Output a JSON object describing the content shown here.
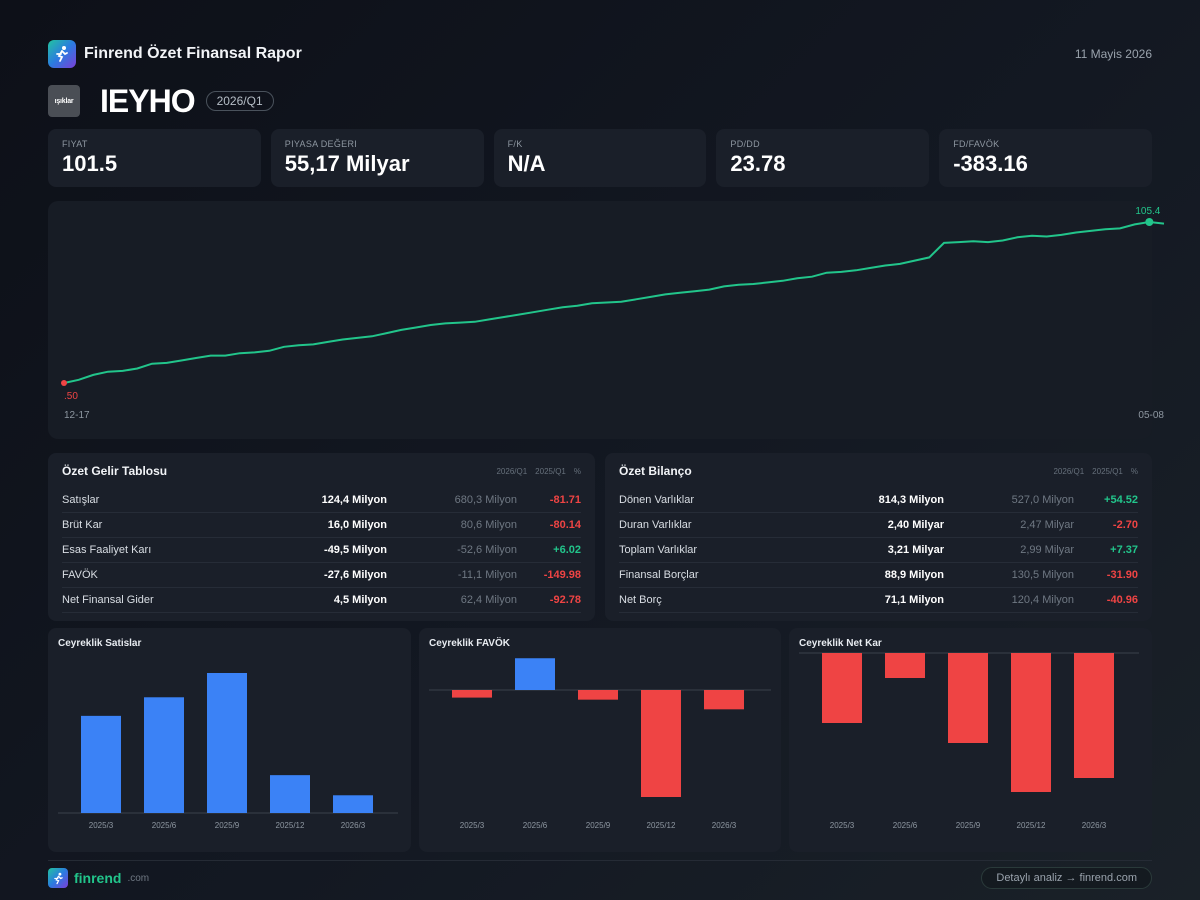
{
  "header": {
    "title": "Finrend Özet Finansal Rapor",
    "date": "11 Mayis 2026",
    "logo_icon": "runner-icon"
  },
  "company": {
    "logo_text": "ışıklar",
    "ticker": "IEYHO",
    "period": "2026/Q1"
  },
  "kpis": [
    {
      "label": "FIYAT",
      "value": "101.5"
    },
    {
      "label": "PIYASA DEĞERI",
      "value": "55,17 Milyar"
    },
    {
      "label": "F/K",
      "value": "N/A"
    },
    {
      "label": "PD/DD",
      "value": "23.78"
    },
    {
      "label": "FD/FAVÖK",
      "value": "-383.16"
    }
  ],
  "price_chart": {
    "start_label": "12-17",
    "end_label": "05-08",
    "min_label": ".50",
    "max_label": "105.4",
    "line_color": "#22c58b",
    "min_color": "#ef4444",
    "chart_data": {
      "type": "line",
      "x_range": [
        "12-17",
        "05-08"
      ],
      "values": [
        0.0,
        0.02,
        0.05,
        0.07,
        0.075,
        0.09,
        0.12,
        0.125,
        0.14,
        0.155,
        0.17,
        0.17,
        0.185,
        0.19,
        0.2,
        0.225,
        0.235,
        0.24,
        0.255,
        0.27,
        0.28,
        0.29,
        0.31,
        0.33,
        0.345,
        0.36,
        0.37,
        0.375,
        0.38,
        0.395,
        0.41,
        0.425,
        0.44,
        0.455,
        0.47,
        0.48,
        0.495,
        0.5,
        0.505,
        0.52,
        0.535,
        0.55,
        0.56,
        0.57,
        0.58,
        0.6,
        0.61,
        0.615,
        0.625,
        0.635,
        0.65,
        0.66,
        0.685,
        0.69,
        0.7,
        0.715,
        0.73,
        0.74,
        0.76,
        0.78,
        0.87,
        0.875,
        0.88,
        0.875,
        0.885,
        0.905,
        0.915,
        0.91,
        0.92,
        0.935,
        0.945,
        0.955,
        0.96,
        0.985,
        1.0,
        0.99
      ]
    }
  },
  "income": {
    "title": "Özet Gelir Tablosu",
    "cols": [
      "2026/Q1",
      "2025/Q1",
      "%"
    ],
    "rows": [
      {
        "name": "Satışlar",
        "cur": "124,4 Milyon",
        "prev": "680,3 Milyon",
        "pct": "-81.71",
        "dir": "neg"
      },
      {
        "name": "Brüt Kar",
        "cur": "16,0 Milyon",
        "prev": "80,6 Milyon",
        "pct": "-80.14",
        "dir": "neg"
      },
      {
        "name": "Esas Faaliyet Karı",
        "cur": "-49,5 Milyon",
        "prev": "-52,6 Milyon",
        "pct": "+6.02",
        "dir": "pos"
      },
      {
        "name": "FAVÖK",
        "cur": "-27,6 Milyon",
        "prev": "-11,1 Milyon",
        "pct": "-149.98",
        "dir": "neg"
      },
      {
        "name": "Net Finansal Gider",
        "cur": "4,5 Milyon",
        "prev": "62,4 Milyon",
        "pct": "-92.78",
        "dir": "neg"
      }
    ]
  },
  "balance": {
    "title": "Özet Bilanço",
    "cols": [
      "2026/Q1",
      "2025/Q1",
      "%"
    ],
    "rows": [
      {
        "name": "Dönen Varlıklar",
        "cur": "814,3 Milyon",
        "prev": "527,0 Milyon",
        "pct": "+54.52",
        "dir": "pos"
      },
      {
        "name": "Duran Varlıklar",
        "cur": "2,40 Milyar",
        "prev": "2,47 Milyar",
        "pct": "-2.70",
        "dir": "neg"
      },
      {
        "name": "Toplam Varlıklar",
        "cur": "3,21 Milyar",
        "prev": "2,99 Milyar",
        "pct": "+7.37",
        "dir": "pos"
      },
      {
        "name": "Finansal Borçlar",
        "cur": "88,9 Milyon",
        "prev": "130,5 Milyon",
        "pct": "-31.90",
        "dir": "neg"
      },
      {
        "name": "Net Borç",
        "cur": "71,1 Milyon",
        "prev": "120,4 Milyon",
        "pct": "-40.96",
        "dir": "neg"
      }
    ]
  },
  "quarterly": {
    "colors": {
      "positive": "#3b82f6",
      "negative": "#ef4444"
    },
    "chart_data": [
      {
        "type": "bar",
        "title": "Ceyreklik Satislar",
        "categories": [
          "2025/3",
          "2025/6",
          "2025/9",
          "2025/12",
          "2026/3"
        ],
        "values": [
          680,
          810,
          980,
          265,
          124
        ]
      },
      {
        "type": "bar",
        "title": "Ceyreklik FAVÖK",
        "categories": [
          "2025/3",
          "2025/6",
          "2025/9",
          "2025/12",
          "2026/3"
        ],
        "values": [
          -11,
          46,
          -14,
          -155,
          -28
        ]
      },
      {
        "type": "bar",
        "title": "Ceyreklik Net Kar",
        "categories": [
          "2025/3",
          "2025/6",
          "2025/9",
          "2025/12",
          "2026/3"
        ],
        "values": [
          -70,
          -25,
          -90,
          -139,
          -125
        ]
      }
    ]
  },
  "footer": {
    "brand": "finrend",
    "domain": ".com",
    "cta": "Detaylı analiz → finrend.com"
  }
}
